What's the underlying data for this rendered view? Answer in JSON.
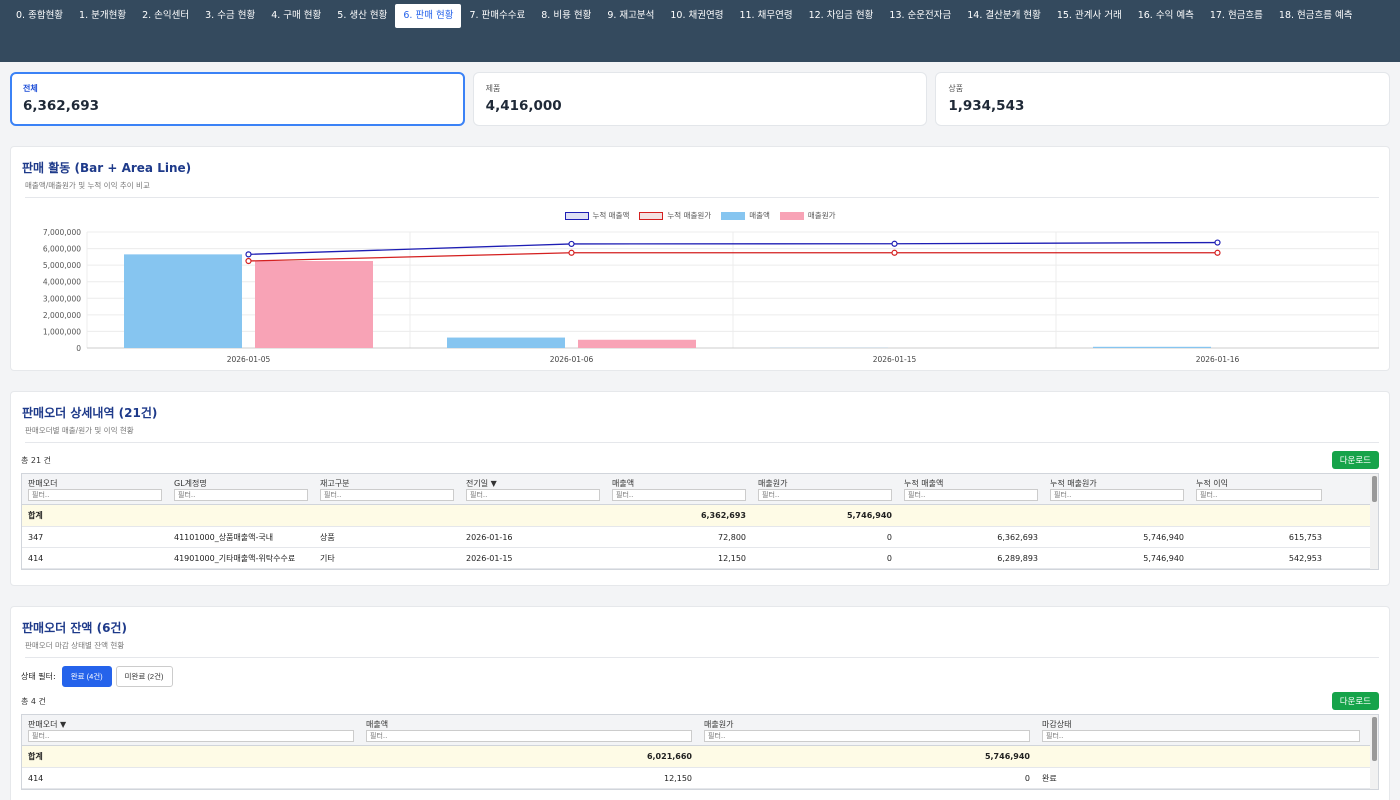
{
  "tabs": [
    "0. 종합현황",
    "1. 분개현황",
    "2. 손익센터",
    "3. 수금 현황",
    "4. 구매 현황",
    "5. 생산 현황",
    "6. 판매 현황",
    "7. 판매수수료",
    "8. 비용 현황",
    "9. 재고분석",
    "10. 채권연령",
    "11. 채무연령",
    "12. 차입금 현황",
    "13. 순운전자금",
    "14. 결산분개 현황",
    "15. 관계사 거래",
    "16. 수익 예측",
    "17. 현금흐름",
    "18. 현금흐름 예측"
  ],
  "active_tab": "6. 판매 현황",
  "cards": [
    {
      "label": "전체",
      "value": "6,362,693"
    },
    {
      "label": "제품",
      "value": "4,416,000"
    },
    {
      "label": "상품",
      "value": "1,934,543"
    }
  ],
  "chart_panel": {
    "title": "판매 활동 (Bar + Area Line)",
    "subtitle": "매출액/매출원가 및 누적 이익 추이 비교"
  },
  "chart_data": {
    "type": "bar",
    "categories": [
      "2026-01-05",
      "2026-01-06",
      "2026-01-15",
      "2026-01-16"
    ],
    "series": [
      {
        "name": "누적 매출액",
        "kind": "line",
        "color": "#1e1eb4",
        "values": [
          5650000,
          6280000,
          6290000,
          6363000
        ]
      },
      {
        "name": "누적 매출원가",
        "kind": "line",
        "color": "#d42020",
        "values": [
          5250000,
          5747000,
          5747000,
          5747000
        ]
      },
      {
        "name": "매출액",
        "kind": "bar",
        "color": "#86c5f0",
        "values": [
          5650000,
          630000,
          10000,
          72800
        ]
      },
      {
        "name": "매출원가",
        "kind": "bar",
        "color": "#f8a3b6",
        "values": [
          5250000,
          497000,
          0,
          0
        ]
      }
    ],
    "y_ticks": [
      "0",
      "1,000,000",
      "2,000,000",
      "3,000,000",
      "4,000,000",
      "5,000,000",
      "6,000,000",
      "7,000,000"
    ],
    "ylim": [
      0,
      7000000
    ],
    "legend": "top-center",
    "grid": true
  },
  "orders_panel": {
    "title": "판매오더 상세내역 (21건)",
    "subtitle": "판매오더별 매출/원가 및 이익 현황",
    "count": "총 21 건",
    "download": "다운로드",
    "filter_placeholder": "필터..",
    "columns": [
      "판매오더",
      "GL계정명",
      "재고구분",
      "전기일 ▼",
      "매출액",
      "매출원가",
      "누적 매출액",
      "누적 매출원가",
      "누적 이익"
    ],
    "total": {
      "label": "합계",
      "sales": "6,362,693",
      "cost": "5,746,940"
    },
    "rows": [
      [
        "347",
        "41101000_상품매출액-국내",
        "상품",
        "2026-01-16",
        "72,800",
        "0",
        "6,362,693",
        "5,746,940",
        "615,753"
      ],
      [
        "414",
        "41901000_기타매출액-위탁수수료",
        "기타",
        "2026-01-15",
        "12,150",
        "0",
        "6,289,893",
        "5,746,940",
        "542,953"
      ]
    ]
  },
  "balance_panel": {
    "title": "판매오더 잔액 (6건)",
    "subtitle": "판매오더 마감 상태별 잔액 현황",
    "filter_label": "상태 필터:",
    "filter_done": "완료 (4건)",
    "filter_open": "미완료 (2건)",
    "count": "총 4 건",
    "download": "다운로드",
    "filter_placeholder": "필터..",
    "columns": [
      "판매오더 ▼",
      "매출액",
      "매출원가",
      "마감상태"
    ],
    "total": {
      "label": "합계",
      "sales": "6,021,660",
      "cost": "5,746,940"
    },
    "rows": [
      [
        "414",
        "12,150",
        "0",
        "완료"
      ]
    ]
  }
}
